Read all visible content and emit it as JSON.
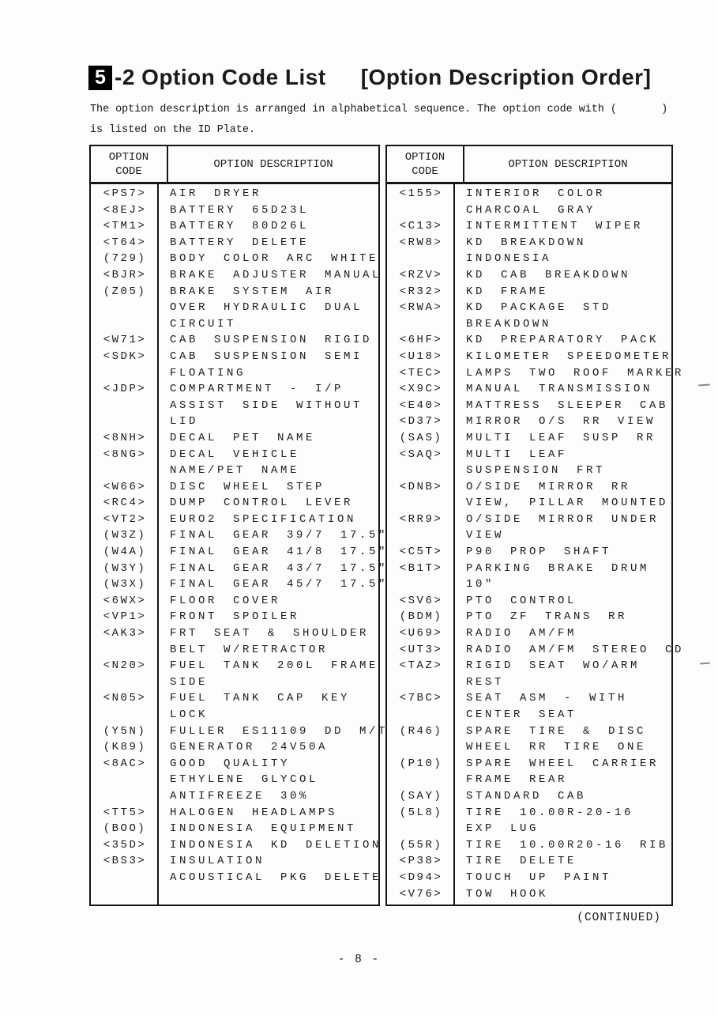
{
  "header": {
    "section_number": "5",
    "title": "-2 Option Code List",
    "subtitle": "[Option Description Order]"
  },
  "intro": {
    "line1": "The option description is arranged in alphabetical sequence. The option code with (       )",
    "line2": "is listed on the ID Plate."
  },
  "columns": {
    "code_label": "OPTION CODE",
    "desc_label": "OPTION DESCRIPTION"
  },
  "left_table": {
    "entries": [
      {
        "code": "<PS7>",
        "lines": [
          "AIR DRYER"
        ]
      },
      {
        "code": "<8EJ>",
        "lines": [
          "BATTERY 65D23L"
        ]
      },
      {
        "code": "<TM1>",
        "lines": [
          "BATTERY 80D26L"
        ]
      },
      {
        "code": "<T64>",
        "lines": [
          "BATTERY DELETE"
        ]
      },
      {
        "code": "(729)",
        "lines": [
          "BODY COLOR ARC WHITE"
        ]
      },
      {
        "code": "<BJR>",
        "lines": [
          "BRAKE ADJUSTER MANUAL"
        ]
      },
      {
        "code": "(Z05)",
        "lines": [
          "BRAKE SYSTEM AIR",
          "OVER HYDRAULIC DUAL",
          "CIRCUIT"
        ]
      },
      {
        "code": "<W71>",
        "lines": [
          "CAB SUSPENSION RIGID"
        ]
      },
      {
        "code": "<SDK>",
        "lines": [
          "CAB SUSPENSION SEMI",
          "FLOATING"
        ]
      },
      {
        "code": "<JDP>",
        "lines": [
          "COMPARTMENT - I/P",
          "ASSIST SIDE WITHOUT",
          "LID"
        ]
      },
      {
        "code": "<8NH>",
        "lines": [
          "DECAL PET NAME"
        ]
      },
      {
        "code": "<8NG>",
        "lines": [
          "DECAL VEHICLE",
          "NAME/PET NAME"
        ]
      },
      {
        "code": "<W66>",
        "lines": [
          "DISC WHEEL STEP"
        ]
      },
      {
        "code": "<RC4>",
        "lines": [
          "DUMP CONTROL LEVER"
        ]
      },
      {
        "code": "<VT2>",
        "lines": [
          "EURO2 SPECIFICATION"
        ]
      },
      {
        "code": "(W3Z)",
        "lines": [
          "FINAL GEAR 39/7 17.5\""
        ]
      },
      {
        "code": "(W4A)",
        "lines": [
          "FINAL GEAR 41/8 17.5\""
        ]
      },
      {
        "code": "(W3Y)",
        "lines": [
          "FINAL GEAR 43/7 17.5\""
        ]
      },
      {
        "code": "(W3X)",
        "lines": [
          "FINAL GEAR 45/7 17.5\""
        ]
      },
      {
        "code": "<6WX>",
        "lines": [
          "FLOOR COVER"
        ]
      },
      {
        "code": "<VP1>",
        "lines": [
          "FRONT SPOILER"
        ]
      },
      {
        "code": "<AK3>",
        "lines": [
          "FRT SEAT & SHOULDER",
          "BELT W/RETRACTOR"
        ]
      },
      {
        "code": "<N20>",
        "lines": [
          "FUEL TANK 200L FRAME",
          "SIDE"
        ]
      },
      {
        "code": "<N05>",
        "lines": [
          "FUEL TANK CAP KEY",
          "LOCK"
        ]
      },
      {
        "code": "(Y5N)",
        "lines": [
          "FULLER ES11109 DD M/T"
        ]
      },
      {
        "code": "(K89)",
        "lines": [
          "GENERATOR 24V50A"
        ]
      },
      {
        "code": "<8AC>",
        "lines": [
          "GOOD QUALITY",
          "ETHYLENE GLYCOL",
          "ANTIFREEZE 30%"
        ]
      },
      {
        "code": "<TT5>",
        "lines": [
          "HALOGEN HEADLAMPS"
        ]
      },
      {
        "code": "(BOO)",
        "lines": [
          "INDONESIA EQUIPMENT"
        ]
      },
      {
        "code": "<35D>",
        "lines": [
          "INDONESIA KD DELETION"
        ]
      },
      {
        "code": "<BS3>",
        "lines": [
          "INSULATION",
          "ACOUSTICAL PKG DELETE"
        ]
      }
    ]
  },
  "right_table": {
    "entries": [
      {
        "code": "<155>",
        "lines": [
          "INTERIOR COLOR",
          "CHARCOAL GRAY"
        ]
      },
      {
        "code": "<C13>",
        "lines": [
          "INTERMITTENT WIPER"
        ]
      },
      {
        "code": "<RW8>",
        "lines": [
          "KD BREAKDOWN",
          "INDONESIA"
        ]
      },
      {
        "code": "<RZV>",
        "lines": [
          "KD CAB BREAKDOWN"
        ]
      },
      {
        "code": "<R32>",
        "lines": [
          "KD FRAME"
        ]
      },
      {
        "code": "<RWA>",
        "lines": [
          "KD PACKAGE STD",
          "BREAKDOWN"
        ]
      },
      {
        "code": "<6HF>",
        "lines": [
          "KD PREPARATORY PACK"
        ]
      },
      {
        "code": "<U18>",
        "lines": [
          "KILOMETER SPEEDOMETER"
        ]
      },
      {
        "code": "<TEC>",
        "lines": [
          "LAMPS TWO ROOF MARKER"
        ]
      },
      {
        "code": "<X9C>",
        "lines": [
          "MANUAL TRANSMISSION"
        ]
      },
      {
        "code": "<E40>",
        "lines": [
          "MATTRESS SLEEPER CAB"
        ]
      },
      {
        "code": "<D37>",
        "lines": [
          "MIRROR O/S RR VIEW"
        ]
      },
      {
        "code": "(SAS)",
        "lines": [
          "MULTI LEAF SUSP RR"
        ]
      },
      {
        "code": "<SAQ>",
        "lines": [
          "MULTI LEAF",
          "SUSPENSION FRT"
        ]
      },
      {
        "code": "<DNB>",
        "lines": [
          "O/SIDE MIRROR RR",
          "VIEW, PILLAR MOUNTED"
        ]
      },
      {
        "code": "<RR9>",
        "lines": [
          "O/SIDE MIRROR UNDER",
          "VIEW"
        ]
      },
      {
        "code": "<C5T>",
        "lines": [
          "P90 PROP SHAFT"
        ]
      },
      {
        "code": "<B1T>",
        "lines": [
          "PARKING BRAKE DRUM",
          "10\""
        ]
      },
      {
        "code": "<SV6>",
        "lines": [
          "PTO CONTROL"
        ]
      },
      {
        "code": "(BDM)",
        "lines": [
          "PTO ZF TRANS RR"
        ]
      },
      {
        "code": "<U69>",
        "lines": [
          "RADIO AM/FM"
        ]
      },
      {
        "code": "<UT3>",
        "lines": [
          "RADIO AM/FM STEREO CD"
        ]
      },
      {
        "code": "<TAZ>",
        "lines": [
          "RIGID SEAT WO/ARM",
          "REST"
        ]
      },
      {
        "code": "<7BC>",
        "lines": [
          "SEAT ASM - WITH",
          "CENTER SEAT"
        ]
      },
      {
        "code": "(R46)",
        "lines": [
          "SPARE TIRE & DISC",
          "WHEEL RR TIRE ONE"
        ]
      },
      {
        "code": "(P10)",
        "lines": [
          "SPARE WHEEL CARRIER",
          "FRAME REAR"
        ]
      },
      {
        "code": "(SAY)",
        "lines": [
          "STANDARD CAB"
        ]
      },
      {
        "code": "(5L8)",
        "lines": [
          "TIRE 10.00R-20-16",
          "EXP LUG"
        ]
      },
      {
        "code": "(55R)",
        "lines": [
          "TIRE 10.00R20-16 RIB"
        ]
      },
      {
        "code": "<P38>",
        "lines": [
          "TIRE DELETE"
        ]
      },
      {
        "code": "<D94>",
        "lines": [
          "TOUCH UP PAINT"
        ]
      },
      {
        "code": "<V76>",
        "lines": [
          "TOW HOOK"
        ]
      }
    ]
  },
  "footer": {
    "continued": "(CONTINUED)",
    "page_number": "- 8 -"
  }
}
